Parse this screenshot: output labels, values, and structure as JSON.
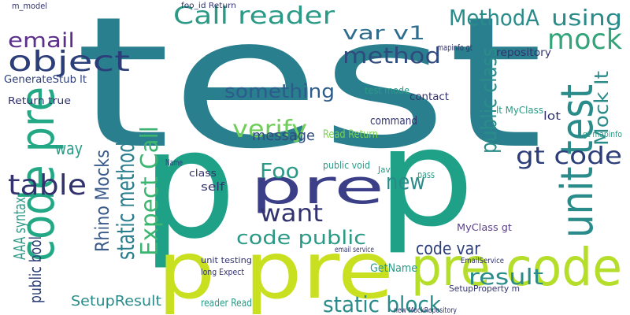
{
  "words": [
    "test",
    "p",
    "p",
    "pre",
    "p pre",
    "pre code",
    "code pre",
    "unit test",
    "object",
    "table",
    "mock",
    "Call reader",
    "MethodA",
    "using",
    "method",
    "something",
    "verify",
    "email",
    "var v1",
    "public class",
    "Mock It",
    "gt code",
    "static method",
    "Rhino Mocks",
    "Expect Call",
    "want",
    "Foo",
    "code public",
    "new",
    "result",
    "static block",
    "code var",
    "SetupResult",
    "AAA syntax",
    "public bool",
    "message",
    "GetName",
    "MyClass gt",
    "command",
    "Read Return",
    "public void",
    "test mode",
    "repository",
    "contact",
    "lot",
    "way",
    "self",
    "class",
    "Return true",
    "GenerateStub lt",
    "m_model",
    "foo_id Return",
    "SetupProperty m",
    "unit testing",
    "long Expect",
    "Name",
    "lt MyClass",
    "Java",
    "pass",
    "gt mapinfo",
    "mapinfo gt",
    "reader Read",
    "new MockRepository",
    "email service",
    "EmailService"
  ]
}
